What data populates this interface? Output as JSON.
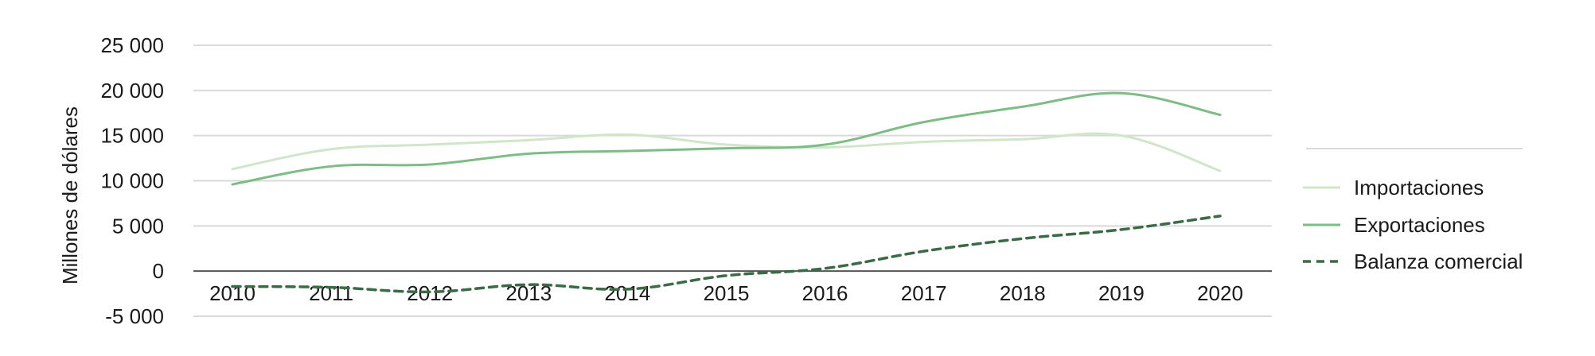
{
  "chart_data": {
    "type": "line",
    "title": "",
    "xlabel": "",
    "ylabel": "Millones de dólares",
    "x": [
      "2010",
      "2011",
      "2012",
      "2013",
      "2014",
      "2015",
      "2016",
      "2017",
      "2018",
      "2019",
      "2020"
    ],
    "ylim": [
      -5000,
      25000
    ],
    "yticks": [
      25000,
      20000,
      15000,
      10000,
      5000,
      0,
      -5000
    ],
    "ytick_labels": [
      "25 000",
      "20 000",
      "15 000",
      "10 000",
      "5 000",
      "0",
      "-5 000"
    ],
    "grid": true,
    "legend_position": "right",
    "series": [
      {
        "name": "Importaciones",
        "color": "#cfe6c9",
        "style": "solid",
        "values": [
          11300,
          13500,
          14000,
          14500,
          15100,
          14000,
          13700,
          14300,
          14600,
          15000,
          11100
        ]
      },
      {
        "name": "Exportaciones",
        "color": "#7dbd85",
        "style": "solid",
        "values": [
          9600,
          11600,
          11800,
          13000,
          13300,
          13600,
          14000,
          16500,
          18200,
          19700,
          17300
        ]
      },
      {
        "name": "Balanza comercial",
        "color": "#3a6b46",
        "style": "dashed",
        "values": [
          -1700,
          -1800,
          -2300,
          -1500,
          -2000,
          -500,
          300,
          2200,
          3600,
          4600,
          6100
        ]
      }
    ]
  }
}
